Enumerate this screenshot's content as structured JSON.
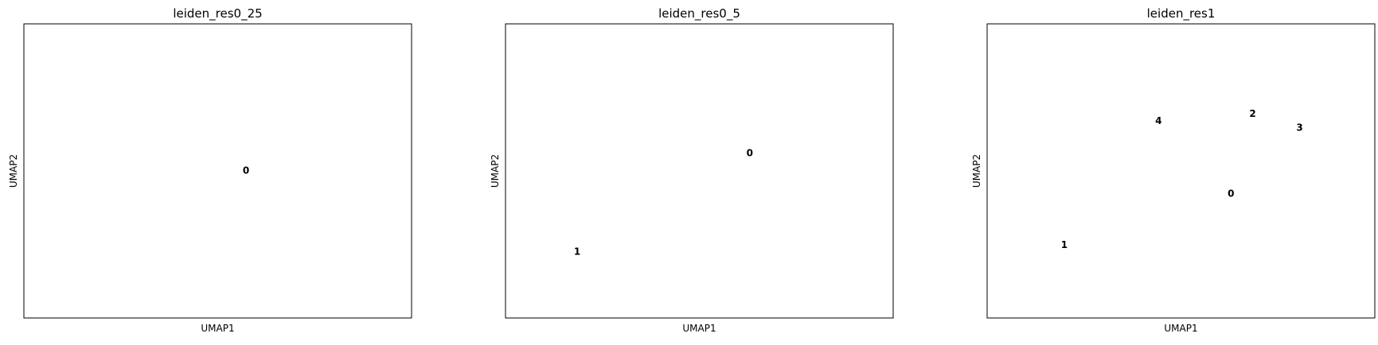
{
  "chart_data": [
    {
      "type": "scatter",
      "title": "leiden_res0_25",
      "xlabel": "UMAP1",
      "ylabel": "UMAP2",
      "xlim": [
        0,
        100
      ],
      "ylim": [
        0,
        100
      ],
      "grid": false,
      "legend": "on data",
      "palette": {
        "0": "#1f77b4"
      },
      "cluster_labels": [
        {
          "text": "0",
          "x": 57.3,
          "y": 50.0
        }
      ],
      "points": []
    },
    {
      "type": "scatter",
      "title": "leiden_res0_5",
      "xlabel": "UMAP1",
      "ylabel": "UMAP2",
      "xlim": [
        0,
        100
      ],
      "ylim": [
        0,
        100
      ],
      "grid": false,
      "legend": "on data",
      "palette": {
        "0": "#1f77b4",
        "1": "#ff7f0e"
      },
      "cluster_labels": [
        {
          "text": "0",
          "x": 63.0,
          "y": 56.0
        },
        {
          "text": "1",
          "x": 18.5,
          "y": 22.5
        }
      ],
      "points": []
    },
    {
      "type": "scatter",
      "title": "leiden_res1",
      "xlabel": "UMAP1",
      "ylabel": "UMAP2",
      "xlim": [
        0,
        100
      ],
      "ylim": [
        0,
        100
      ],
      "grid": false,
      "legend": "on data",
      "palette": {
        "0": "#1f77b4",
        "1": "#ff7f0e",
        "2": "#2ca02c",
        "3": "#d62728",
        "4": "#9467bd"
      },
      "cluster_labels": [
        {
          "text": "0",
          "x": 62.9,
          "y": 42.2
        },
        {
          "text": "1",
          "x": 19.9,
          "y": 24.7
        },
        {
          "text": "2",
          "x": 68.5,
          "y": 69.3
        },
        {
          "text": "3",
          "x": 80.6,
          "y": 64.6
        },
        {
          "text": "4",
          "x": 44.2,
          "y": 66.9
        }
      ],
      "points": []
    }
  ]
}
